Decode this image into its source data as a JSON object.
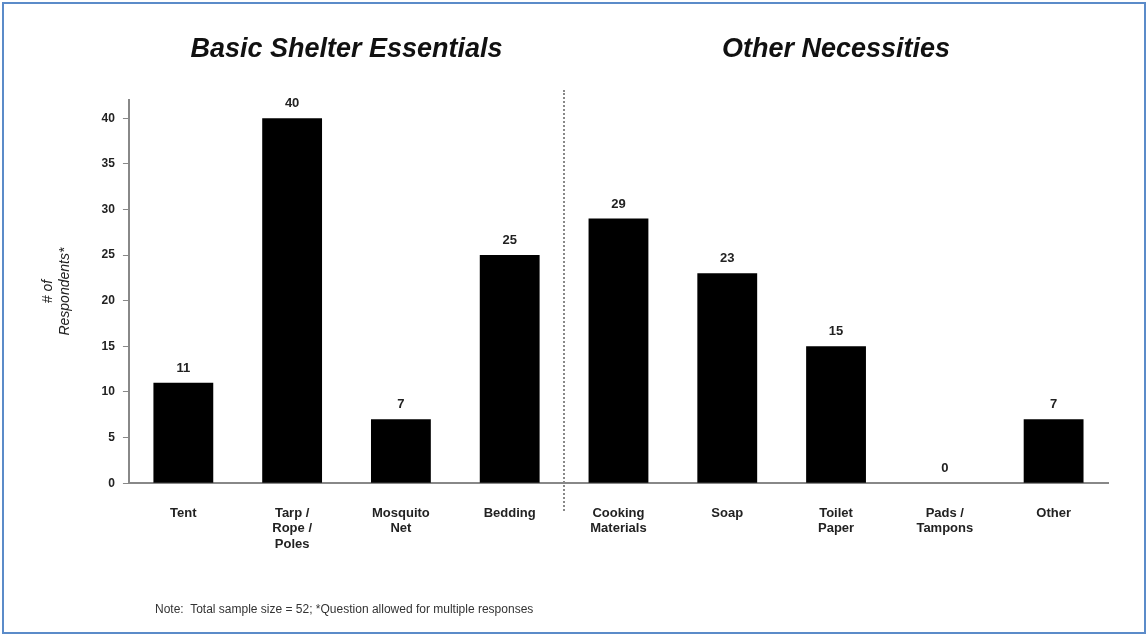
{
  "chart_data": {
    "type": "bar",
    "categories": [
      "Tent",
      "Tarp / Rope / Poles",
      "Mosquito Net",
      "Bedding",
      "Cooking Materials",
      "Soap",
      "Toilet Paper",
      "Pads / Tampons",
      "Other"
    ],
    "values": [
      11,
      40,
      7,
      25,
      29,
      23,
      15,
      0,
      7
    ],
    "color": "#000000",
    "ylabel": "# of Respondents*",
    "ylim": [
      0,
      42
    ],
    "yticks": [
      0,
      5,
      10,
      15,
      20,
      25,
      30,
      35,
      40
    ],
    "data_labels": true,
    "grid": false,
    "legend": false,
    "annotations": [
      "Basic Shelter Essentials",
      "Other Necessities",
      "Note:  Total sample size = 52; *Question allowed for multiple responses"
    ]
  }
}
